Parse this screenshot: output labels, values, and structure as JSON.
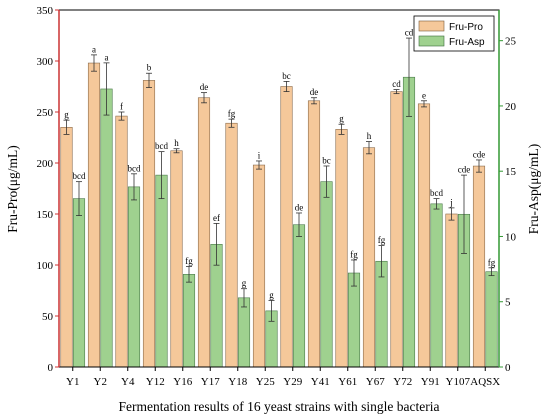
{
  "chart_data": {
    "type": "bar",
    "title": "",
    "xlabel": "Fermentation results of 16 yeast strains with single bacteria",
    "ylabel": "Fru-Pro(μg/mL)",
    "y2label": "Fru-Asp(μg/mL)",
    "ylim": [
      0,
      350
    ],
    "y2lim": [
      0,
      27.35
    ],
    "yticks": [
      0,
      50,
      100,
      150,
      200,
      250,
      300,
      350
    ],
    "y2ticks": [
      0,
      5,
      10,
      15,
      20,
      25
    ],
    "legend_position": "top-right",
    "colors": {
      "left_axis": "#cc3333",
      "right_axis": "#339933",
      "pro_fill": "#f5c89a",
      "asp_fill": "#9fd18f"
    },
    "categories": [
      "Y1",
      "Y2",
      "Y4",
      "Y12",
      "Y16",
      "Y17",
      "Y18",
      "Y25",
      "Y29",
      "Y41",
      "Y61",
      "Y67",
      "Y72",
      "Y91",
      "Y107",
      "AQSX"
    ],
    "series": [
      {
        "name": "Fru-Pro",
        "axis": "left",
        "color": "#f5c89a",
        "values": [
          235,
          298,
          246,
          281,
          212,
          264,
          239,
          198,
          275,
          261,
          233,
          215,
          270,
          258,
          150,
          197
        ],
        "errors": [
          7,
          8,
          4,
          7,
          2,
          5,
          4,
          4,
          5,
          3,
          5,
          6,
          2,
          3,
          6,
          6
        ],
        "labels": [
          "g",
          "a",
          "f",
          "b",
          "h",
          "de",
          "fg",
          "i",
          "bc",
          "de",
          "g",
          "h",
          "cd",
          "e",
          "j",
          "cde"
        ]
      },
      {
        "name": "Fru-Asp",
        "axis": "right",
        "color": "#9fd18f",
        "values": [
          12.9,
          21.3,
          13.8,
          14.7,
          7.1,
          9.4,
          5.3,
          4.3,
          10.9,
          14.2,
          7.2,
          8.1,
          22.2,
          12.5,
          11.7,
          7.3
        ],
        "errors": [
          1.3,
          2.0,
          1.0,
          1.8,
          0.6,
          1.6,
          0.7,
          0.8,
          0.9,
          1.2,
          1.0,
          1.2,
          3.0,
          0.4,
          3.0,
          0.3
        ],
        "labels": [
          "bcd",
          "a",
          "bcd",
          "bcd",
          "fg",
          "ef",
          "g",
          "g",
          "de",
          "bc",
          "fg",
          "fg",
          "cd",
          "bcd",
          "cde",
          "fg"
        ]
      }
    ]
  }
}
